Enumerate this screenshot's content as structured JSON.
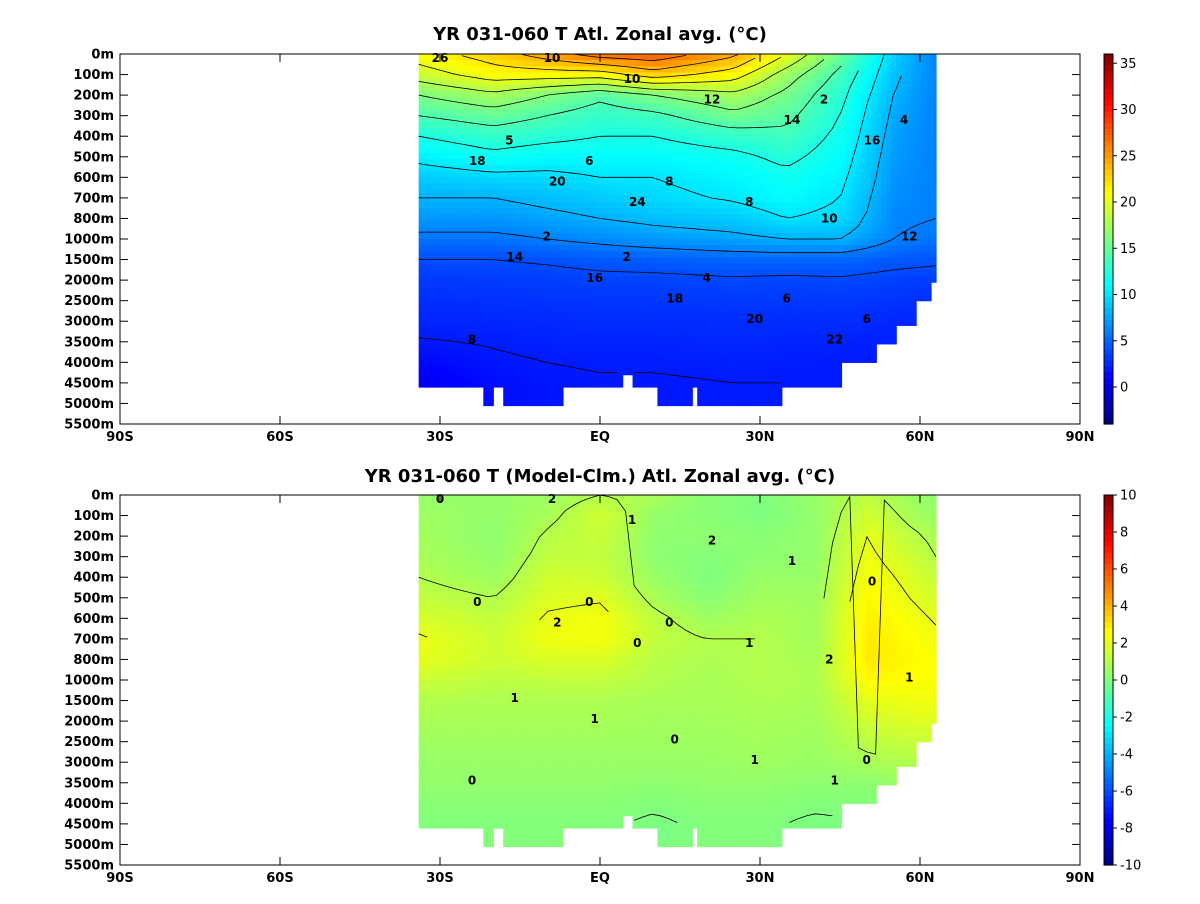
{
  "chart_data": [
    {
      "type": "heatmap",
      "title": "YR 031-060 T Atl. Zonal avg. (°C)",
      "x_ticks": [
        "90S",
        "60S",
        "30S",
        "EQ",
        "30N",
        "60N",
        "90N"
      ],
      "x_tick_values": [
        -90,
        -60,
        -30,
        0,
        30,
        60,
        90
      ],
      "y_ticks": [
        "0m",
        "100m",
        "200m",
        "300m",
        "400m",
        "500m",
        "600m",
        "700m",
        "800m",
        "1000m",
        "1500m",
        "2000m",
        "2500m",
        "3000m",
        "3500m",
        "4000m",
        "4500m",
        "5000m",
        "5500m"
      ],
      "y_tick_depths": [
        0,
        100,
        200,
        300,
        400,
        500,
        600,
        700,
        800,
        1000,
        1500,
        2000,
        2500,
        3000,
        3500,
        4000,
        4500,
        5000,
        5500
      ],
      "colorbar": {
        "min": -4,
        "max": 36,
        "ticks": [
          "35",
          "30",
          "25",
          "20",
          "15",
          "10",
          "5",
          "0"
        ],
        "tick_values": [
          35,
          30,
          25,
          20,
          15,
          10,
          5,
          0
        ]
      },
      "contour_labels": [
        "26",
        "24",
        "22",
        "20",
        "20",
        "18",
        "18",
        "16",
        "16",
        "14",
        "14",
        "12",
        "12",
        "10",
        "10",
        "10",
        "8",
        "8",
        "8",
        "6",
        "6",
        "6",
        "5",
        "4",
        "4",
        "2",
        "2",
        "2"
      ],
      "data": {
        "depths": [
          0,
          100,
          200,
          300,
          400,
          500,
          600,
          700,
          800,
          1000,
          1500,
          2000,
          2500,
          3000,
          3500,
          4000,
          4500
        ],
        "lat_profiles": [
          {
            "lat": -34,
            "t": [
              21,
              19,
              16,
              14,
              12,
              10.5,
              9,
              8,
              7,
              5.5,
              4,
              3.2,
              2.8,
              2.4,
              1.9,
              1.2,
              0.6
            ]
          },
          {
            "lat": -20,
            "t": [
              23,
              21,
              17.5,
              15,
              13,
              11.5,
              9.5,
              8,
              7,
              5.5,
              4,
              3.3,
              2.9,
              2.5,
              2.1,
              1.8,
              1.5
            ]
          },
          {
            "lat": -10,
            "t": [
              25,
              21,
              16,
              14,
              12.5,
              11,
              9.5,
              8.5,
              7.5,
              6,
              4.2,
              3.4,
              3,
              2.6,
              2.3,
              2,
              1.8
            ]
          },
          {
            "lat": 0,
            "t": [
              27,
              21,
              14.5,
              13,
              12,
              11,
              10,
              9,
              8,
              6.5,
              4.5,
              3.6,
              3.1,
              2.7,
              2.4,
              2.1,
              1.9
            ]
          },
          {
            "lat": 10,
            "t": [
              27.5,
              23,
              16,
              13.5,
              12,
              11,
              10,
              9.5,
              8.5,
              7,
              4.7,
              3.6,
              3.1,
              2.7,
              2.4,
              2.1,
              1.9
            ]
          },
          {
            "lat": 25,
            "t": [
              24.5,
              21,
              17.5,
              15.5,
              13,
              11.5,
              10.8,
              10.2,
              9,
              7.5,
              5,
              3.8,
              3.2,
              2.8,
              2.5,
              2.2,
              2
            ]
          },
          {
            "lat": 35,
            "t": [
              20,
              17,
              15.5,
              14.5,
              13.5,
              12.5,
              11.5,
              11,
              10,
              8,
              5,
              3.7,
              3.2,
              2.7,
              2.4,
              2.1,
              2
            ]
          },
          {
            "lat": 45,
            "t": [
              15,
              13.5,
              12.5,
              12,
              11.5,
              11,
              10.5,
              10,
              9.5,
              8,
              5,
              3.8,
              3.2,
              2.8,
              2.3,
              2,
              2
            ]
          },
          {
            "lat": 55,
            "t": [
              9,
              8.5,
              8,
              7.5,
              7.3,
              7,
              6.8,
              6.5,
              6.3,
              6,
              4.5,
              3.5,
              3,
              2.5,
              2.2,
              2,
              2
            ]
          },
          {
            "lat": 63,
            "t": [
              6,
              6,
              6,
              6,
              6,
              6,
              6,
              6,
              6,
              5.5,
              4.3,
              3.3,
              2.8,
              2.4,
              2.1,
              2,
              2
            ]
          }
        ]
      }
    },
    {
      "type": "heatmap",
      "title": "YR 031-060 T (Model-Clm.) Atl. Zonal avg. (°C)",
      "x_ticks": [
        "90S",
        "60S",
        "30S",
        "EQ",
        "30N",
        "60N",
        "90N"
      ],
      "x_tick_values": [
        -90,
        -60,
        -30,
        0,
        30,
        60,
        90
      ],
      "y_ticks": [
        "0m",
        "100m",
        "200m",
        "300m",
        "400m",
        "500m",
        "600m",
        "700m",
        "800m",
        "1000m",
        "1500m",
        "2000m",
        "2500m",
        "3000m",
        "3500m",
        "4000m",
        "4500m",
        "5000m",
        "5500m"
      ],
      "y_tick_depths": [
        0,
        100,
        200,
        300,
        400,
        500,
        600,
        700,
        800,
        1000,
        1500,
        2000,
        2500,
        3000,
        3500,
        4000,
        4500,
        5000,
        5500
      ],
      "colorbar": {
        "min": -10,
        "max": 10,
        "ticks": [
          "10",
          "8",
          "6",
          "4",
          "2",
          "0",
          "-2",
          "-4",
          "-6",
          "-8",
          "-10"
        ],
        "tick_values": [
          10,
          8,
          6,
          4,
          2,
          0,
          -2,
          -4,
          -6,
          -8,
          -10
        ]
      },
      "contour_labels": [
        "0",
        "0",
        "1",
        "2",
        "1",
        "0",
        "0",
        "0",
        "1",
        "1",
        "1",
        "2",
        "1",
        "1",
        "2",
        "2",
        "1",
        "0",
        "0",
        "0",
        "0"
      ],
      "data": {
        "depths": [
          0,
          100,
          200,
          300,
          400,
          500,
          600,
          700,
          800,
          1000,
          1500,
          2000,
          2500,
          3000,
          3500,
          4000,
          4500
        ],
        "lat_profiles": [
          {
            "lat": -34,
            "a": [
              0.5,
              0.6,
              0.7,
              0.8,
              1,
              1.3,
              1.7,
              2.1,
              2.0,
              1.5,
              1,
              0.8,
              0.6,
              0.5,
              0.4,
              0.2,
              0.1
            ]
          },
          {
            "lat": -20,
            "a": [
              0.4,
              0.4,
              0.3,
              0.4,
              0.6,
              1.0,
              1.3,
              1.5,
              1.5,
              1.2,
              0.9,
              0.8,
              0.6,
              0.5,
              0.4,
              0.2,
              0.1
            ]
          },
          {
            "lat": -10,
            "a": [
              0.6,
              0.8,
              1.1,
              1.3,
              1.6,
              1.8,
              2.1,
              2.2,
              1.8,
              1.3,
              0.9,
              0.8,
              0.6,
              0.5,
              0.4,
              0.2,
              0.1
            ]
          },
          {
            "lat": 0,
            "a": [
              1.0,
              1.6,
              1.4,
              1.3,
              1.5,
              1.9,
              2.3,
              2.3,
              1.8,
              1.3,
              0.9,
              0.8,
              0.6,
              0.5,
              0.4,
              0.2,
              0.1
            ]
          },
          {
            "lat": 10,
            "a": [
              0.8,
              0.4,
              0.3,
              0.3,
              0.5,
              0.8,
              1.2,
              1.3,
              1.1,
              1.0,
              0.8,
              0.7,
              0.6,
              0.5,
              0.3,
              0.1,
              -0.1
            ]
          },
          {
            "lat": 20,
            "a": [
              0.2,
              0.2,
              0.3,
              0.1,
              0.0,
              0.2,
              0.6,
              1.0,
              0.9,
              0.8,
              0.8,
              0.7,
              0.6,
              0.5,
              0.4,
              0.2,
              0.1
            ]
          },
          {
            "lat": 30,
            "a": [
              0.0,
              0.0,
              0.2,
              0.3,
              0.5,
              0.7,
              0.9,
              1.0,
              1.0,
              1.0,
              0.9,
              0.8,
              0.7,
              0.6,
              0.4,
              0.2,
              0.1
            ]
          },
          {
            "lat": 40,
            "a": [
              0.5,
              0.4,
              0.4,
              0.4,
              0.5,
              0.6,
              0.7,
              0.7,
              0.8,
              0.9,
              0.8,
              0.7,
              0.6,
              0.5,
              0.3,
              0.1,
              -0.1
            ]
          },
          {
            "lat": 50,
            "a": [
              1.2,
              1.6,
              2.0,
              2.2,
              2.4,
              2.6,
              2.8,
              2.9,
              2.9,
              2.6,
              2.0,
              1.6,
              1.2,
              0.8,
              0.3,
              0.1,
              0.0
            ]
          },
          {
            "lat": 58,
            "a": [
              0.5,
              0.8,
              1.2,
              1.5,
              1.8,
              2.0,
              2.3,
              2.5,
              2.6,
              2.5,
              2.2,
              1.8,
              1.4,
              1.0,
              0.6,
              0.3,
              0.0
            ]
          },
          {
            "lat": 63,
            "a": [
              0.3,
              0.5,
              0.8,
              1.0,
              1.3,
              1.6,
              1.9,
              2.2,
              2.4,
              2.4,
              2.2,
              1.9,
              1.5,
              1.0,
              0.6,
              0.3,
              0.0
            ]
          }
        ]
      }
    }
  ]
}
